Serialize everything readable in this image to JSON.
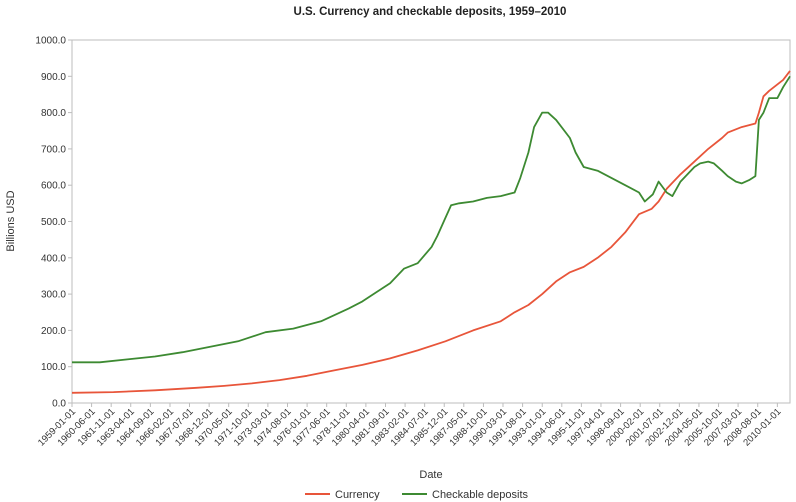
{
  "chart_data": {
    "type": "line",
    "title": "U.S. Currency and checkable deposits, 1959–2010",
    "xlabel": "Date",
    "ylabel": "Billions USD",
    "ylim": [
      0,
      1000
    ],
    "yticks": [
      "0.0",
      "100.0",
      "200.0",
      "300.0",
      "400.0",
      "500.0",
      "600.0",
      "700.0",
      "800.0",
      "900.0",
      "1000.0"
    ],
    "xticks": [
      "1959-01-01",
      "1960-06-01",
      "1961-11-01",
      "1963-04-01",
      "1964-09-01",
      "1966-02-01",
      "1967-07-01",
      "1968-12-01",
      "1970-05-01",
      "1971-10-01",
      "1973-03-01",
      "1974-08-01",
      "1976-01-01",
      "1977-06-01",
      "1978-11-01",
      "1980-04-01",
      "1981-09-01",
      "1983-02-01",
      "1984-07-01",
      "1985-12-01",
      "1987-05-01",
      "1988-10-01",
      "1990-03-01",
      "1991-08-01",
      "1993-01-01",
      "1994-06-01",
      "1995-11-01",
      "1997-04-01",
      "1998-09-01",
      "2000-02-01",
      "2001-07-01",
      "2002-12-01",
      "2004-05-01",
      "2005-10-01",
      "2007-03-01",
      "2008-08-01",
      "2010-01-01"
    ],
    "xrange": [
      "1959-01-01",
      "2010-12-01"
    ],
    "grid": false,
    "legend": "bottom-center",
    "series": [
      {
        "name": "Currency",
        "color": "#e8553a",
        "points": [
          [
            "1959-01-01",
            28
          ],
          [
            "1962-01-01",
            30
          ],
          [
            "1965-01-01",
            35
          ],
          [
            "1968-01-01",
            42
          ],
          [
            "1970-01-01",
            47
          ],
          [
            "1972-01-01",
            54
          ],
          [
            "1974-01-01",
            63
          ],
          [
            "1976-01-01",
            75
          ],
          [
            "1978-01-01",
            90
          ],
          [
            "1980-01-01",
            105
          ],
          [
            "1982-01-01",
            123
          ],
          [
            "1984-01-01",
            145
          ],
          [
            "1986-01-01",
            170
          ],
          [
            "1988-01-01",
            200
          ],
          [
            "1990-01-01",
            225
          ],
          [
            "1991-01-01",
            250
          ],
          [
            "1992-01-01",
            270
          ],
          [
            "1993-01-01",
            300
          ],
          [
            "1994-01-01",
            335
          ],
          [
            "1995-01-01",
            360
          ],
          [
            "1996-01-01",
            375
          ],
          [
            "1997-01-01",
            400
          ],
          [
            "1998-01-01",
            430
          ],
          [
            "1999-01-01",
            470
          ],
          [
            "2000-01-01",
            520
          ],
          [
            "2000-12-01",
            535
          ],
          [
            "2001-06-01",
            555
          ],
          [
            "2002-01-01",
            590
          ],
          [
            "2003-01-01",
            630
          ],
          [
            "2004-01-01",
            665
          ],
          [
            "2005-01-01",
            700
          ],
          [
            "2006-01-01",
            730
          ],
          [
            "2006-06-01",
            745
          ],
          [
            "2007-06-01",
            760
          ],
          [
            "2008-06-01",
            770
          ],
          [
            "2008-09-01",
            800
          ],
          [
            "2009-01-01",
            845
          ],
          [
            "2009-06-01",
            860
          ],
          [
            "2010-06-01",
            890
          ],
          [
            "2010-12-01",
            915
          ]
        ]
      },
      {
        "name": "Checkable deposits",
        "color": "#3d8a32",
        "points": [
          [
            "1959-01-01",
            112
          ],
          [
            "1961-01-01",
            112
          ],
          [
            "1963-01-01",
            120
          ],
          [
            "1965-01-01",
            128
          ],
          [
            "1967-01-01",
            140
          ],
          [
            "1969-01-01",
            155
          ],
          [
            "1971-01-01",
            170
          ],
          [
            "1973-01-01",
            195
          ],
          [
            "1975-01-01",
            205
          ],
          [
            "1977-01-01",
            225
          ],
          [
            "1979-01-01",
            260
          ],
          [
            "1980-01-01",
            280
          ],
          [
            "1981-01-01",
            305
          ],
          [
            "1982-01-01",
            330
          ],
          [
            "1983-01-01",
            370
          ],
          [
            "1984-01-01",
            385
          ],
          [
            "1985-01-01",
            430
          ],
          [
            "1985-06-01",
            460
          ],
          [
            "1986-01-01",
            510
          ],
          [
            "1986-06-01",
            545
          ],
          [
            "1987-01-01",
            550
          ],
          [
            "1988-01-01",
            555
          ],
          [
            "1989-01-01",
            565
          ],
          [
            "1990-01-01",
            570
          ],
          [
            "1991-01-01",
            580
          ],
          [
            "1991-06-01",
            620
          ],
          [
            "1992-01-01",
            690
          ],
          [
            "1992-06-01",
            760
          ],
          [
            "1993-01-01",
            800
          ],
          [
            "1993-06-01",
            800
          ],
          [
            "1994-01-01",
            780
          ],
          [
            "1995-01-01",
            730
          ],
          [
            "1995-06-01",
            690
          ],
          [
            "1996-01-01",
            650
          ],
          [
            "1997-01-01",
            640
          ],
          [
            "1998-01-01",
            620
          ],
          [
            "1999-01-01",
            600
          ],
          [
            "2000-01-01",
            580
          ],
          [
            "2000-06-01",
            555
          ],
          [
            "2001-01-01",
            575
          ],
          [
            "2001-06-01",
            610
          ],
          [
            "2002-01-01",
            580
          ],
          [
            "2002-06-01",
            570
          ],
          [
            "2003-01-01",
            610
          ],
          [
            "2004-01-01",
            650
          ],
          [
            "2004-06-01",
            660
          ],
          [
            "2005-01-01",
            665
          ],
          [
            "2005-06-01",
            660
          ],
          [
            "2006-01-01",
            640
          ],
          [
            "2006-06-01",
            625
          ],
          [
            "2007-01-01",
            610
          ],
          [
            "2007-06-01",
            605
          ],
          [
            "2008-01-01",
            615
          ],
          [
            "2008-06-01",
            625
          ],
          [
            "2008-09-01",
            780
          ],
          [
            "2009-01-01",
            800
          ],
          [
            "2009-06-01",
            840
          ],
          [
            "2010-01-01",
            840
          ],
          [
            "2010-06-01",
            870
          ],
          [
            "2010-12-01",
            900
          ]
        ]
      }
    ]
  }
}
